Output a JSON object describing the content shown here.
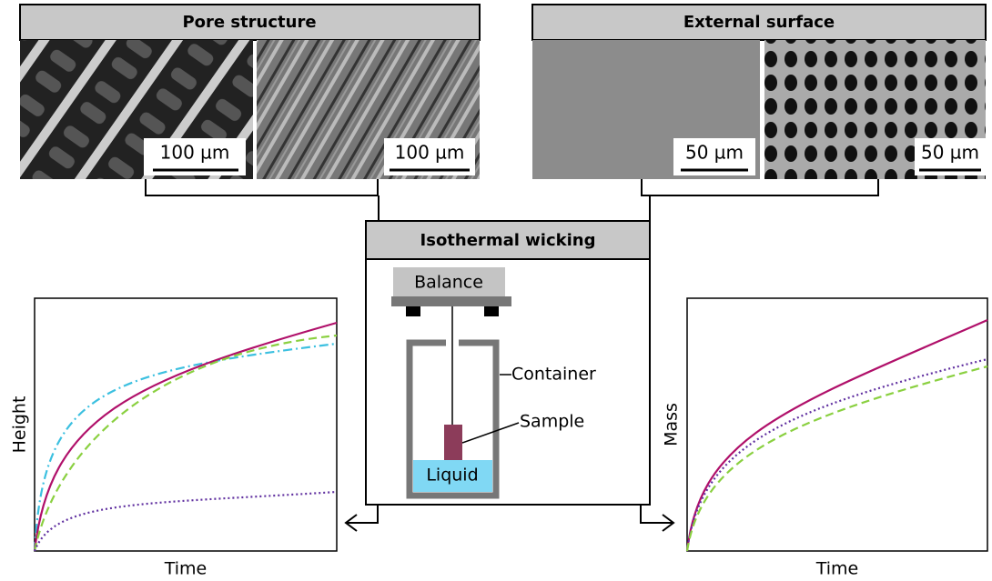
{
  "pore_structure": {
    "title": "Pore structure",
    "scale_bars": [
      "100 µm",
      "100 µm"
    ]
  },
  "external_surface": {
    "title": "External surface",
    "scale_bars": [
      "50 µm",
      "50 µm"
    ]
  },
  "wicking": {
    "title": "Isothermal wicking",
    "labels": {
      "balance": "Balance",
      "container": "Container",
      "sample": "Sample",
      "liquid": "Liquid"
    }
  },
  "plots": [
    {
      "y_label": "Height",
      "x_label": "Time"
    },
    {
      "y_label": "Mass",
      "x_label": "Time"
    }
  ]
}
